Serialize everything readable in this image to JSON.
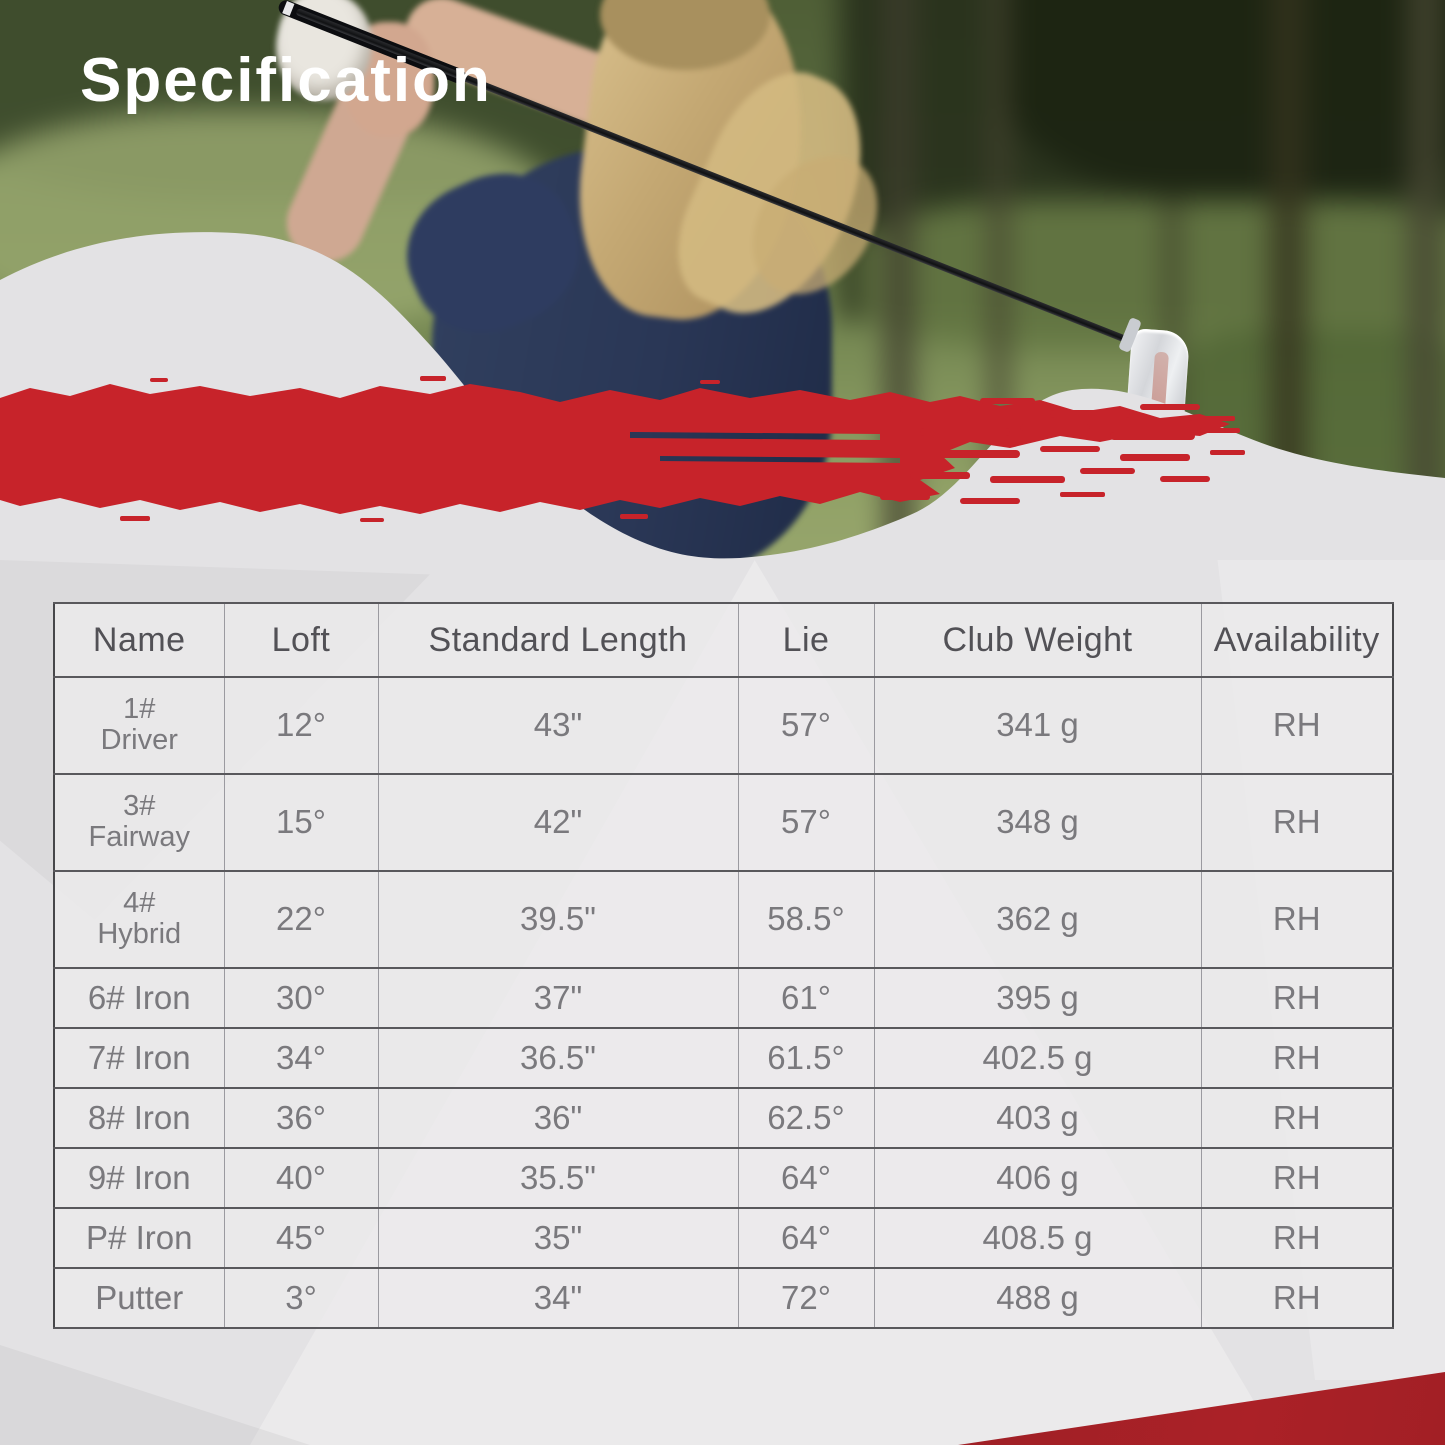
{
  "banner": {
    "label": "Specification"
  },
  "photo": {
    "semantic": "female-golfer-swinging-club-on-course"
  },
  "table": {
    "columns": [
      "Name",
      "Loft",
      "Standard Length",
      "Lie",
      "Club Weight",
      "Availability"
    ],
    "rows": [
      [
        "1#\nDriver",
        "12°",
        "43\"",
        "57°",
        "341 g",
        "RH"
      ],
      [
        "3#\nFairway",
        "15°",
        "42\"",
        "57°",
        "348 g",
        "RH"
      ],
      [
        "4#\nHybrid",
        "22°",
        "39.5\"",
        "58.5°",
        "362 g",
        "RH"
      ],
      [
        "6# Iron",
        "30°",
        "37\"",
        "61°",
        "395 g",
        "RH"
      ],
      [
        "7# Iron",
        "34°",
        "36.5\"",
        "61.5°",
        "402.5 g",
        "RH"
      ],
      [
        "8# Iron",
        "36°",
        "36\"",
        "62.5°",
        "403 g",
        "RH"
      ],
      [
        "9# Iron",
        "40°",
        "35.5\"",
        "64°",
        "406 g",
        "RH"
      ],
      [
        "P# Iron",
        "45°",
        "35\"",
        "64°",
        "408.5 g",
        "RH"
      ],
      [
        "Putter",
        "3°",
        "34\"",
        "72°",
        "488 g",
        "RH"
      ]
    ]
  },
  "colors": {
    "banner_red": "#c7232a",
    "wedge_red": "#ab2127",
    "background_gray": "#e3e2e4",
    "table_line_dark": "#59585c",
    "table_text": "#7a797d"
  }
}
